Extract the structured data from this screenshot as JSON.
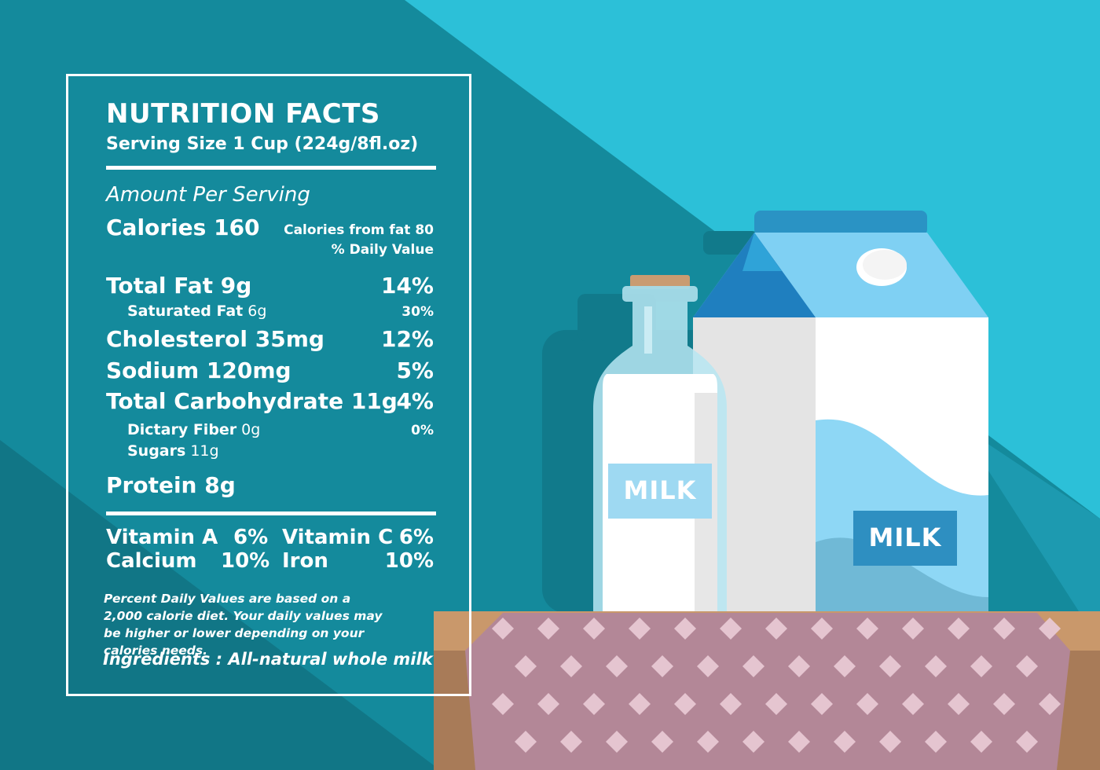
{
  "colors": {
    "background_dark": "#148a9c",
    "background_light": "#2cc0d8",
    "table_wood": "#a87b58",
    "tablecloth": "#b38797",
    "label_text": "#ffffff"
  },
  "nutrition": {
    "title": "NUTRITION FACTS",
    "serving_size": "Serving Size 1 Cup (224g/8fl.oz)",
    "amount_per_serving": "Amount Per Serving",
    "calories": "Calories 160",
    "calories_from_fat": "Calories from fat 80",
    "daily_value_header": "% Daily Value",
    "total_fat": {
      "label": "Total Fat 9g",
      "pct": "14%"
    },
    "saturated_fat": {
      "label": "Saturated Fat",
      "amount": "6g",
      "pct": "30%"
    },
    "cholesterol": {
      "label": "Cholesterol 35mg",
      "pct": "12%"
    },
    "sodium": {
      "label": "Sodium 120mg",
      "pct": "5%"
    },
    "total_carbohydrate": {
      "label": "Total Carbohydrate 11g",
      "pct": "4%"
    },
    "dietary_fiber": {
      "label": "Dictary Fiber",
      "amount": "0g",
      "pct": "0%"
    },
    "sugars": {
      "label": "Sugars",
      "amount": "11g"
    },
    "protein": "Protein 8g",
    "vitamin_a": {
      "label": "Vitamin A",
      "pct": "6%"
    },
    "vitamin_c": {
      "label": "Vitamin C",
      "pct": "6%"
    },
    "calcium": {
      "label": "Calcium",
      "pct": "10%"
    },
    "iron": {
      "label": "Iron",
      "pct": "10%"
    },
    "footnote": "Percent Daily Values are based on a 2,000 calorie diet. Your daily values may be higher or lower depending on your calories needs.",
    "ingredients": "Ingredients : All-natural whole milk"
  },
  "illustration": {
    "bottle_label": "MILK",
    "carton_label": "MILK"
  }
}
